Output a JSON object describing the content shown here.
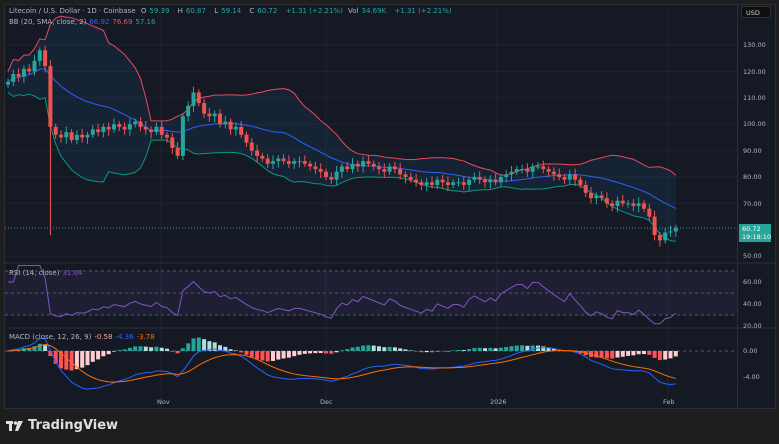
{
  "header": {
    "symbol": "Litecoin / U.S. Dollar · 1D · Coinbase",
    "open_label": "O",
    "open": "59.39",
    "high_label": "H",
    "high": "60.87",
    "low_label": "L",
    "low": "59.14",
    "close_label": "C",
    "close": "60.72",
    "change": "+1.31 (+2.21%)",
    "vol_label": "Vol",
    "vol": "34.69K",
    "change2": "+1.31 (+2.21%)"
  },
  "bb": {
    "label": "BB (20, SMA, close, 2)",
    "basis": "66.92",
    "upper": "76.69",
    "lower": "57.16"
  },
  "rsi": {
    "label": "RSI (14, close)",
    "value": "31.64"
  },
  "macd": {
    "label": "MACD (close, 12, 26, 9)",
    "hist": "-0.58",
    "macd": "-4.36",
    "signal": "-3.78"
  },
  "currency": "USD",
  "last_price": {
    "price": "60.72",
    "countdown": "19:18:10"
  },
  "price_axis": [
    "130.00",
    "120.00",
    "110.00",
    "100.00",
    "90.00",
    "80.00",
    "70.00",
    "50.00"
  ],
  "rsi_axis": [
    "60.00",
    "40.00",
    "20.00"
  ],
  "macd_axis": [
    "0.00",
    "-4.00"
  ],
  "time_axis": [
    "Nov",
    "Dec",
    "2026",
    "Feb"
  ],
  "brand": "TradingView",
  "colors": {
    "up": "#26a69a",
    "down": "#ef5350",
    "bb_upper": "#e84a5f",
    "bb_basis": "#2962ff",
    "bb_lower": "#089981",
    "rsi": "#7e57c2",
    "macd": "#2962ff",
    "signal": "#ff6d00"
  },
  "chart_data": {
    "type": "candlestick",
    "x_start": "Oct 2",
    "x_end": "Feb 5",
    "closes": [
      116,
      119,
      118,
      121,
      120,
      124,
      128,
      122,
      99,
      96,
      95,
      97,
      94,
      96,
      95,
      96,
      98,
      97,
      99,
      98,
      100,
      99,
      98,
      100,
      101,
      99,
      98,
      97,
      99,
      96,
      95,
      91,
      88,
      103,
      107,
      112,
      108,
      104,
      103,
      104,
      100,
      101,
      98,
      99,
      96,
      93,
      90,
      88,
      87,
      85,
      86,
      87,
      86,
      85,
      86,
      86,
      85,
      84,
      83,
      82,
      80,
      79,
      82,
      84,
      83,
      85,
      84,
      86,
      85,
      84,
      83,
      82,
      84,
      83,
      81,
      80,
      79,
      78,
      77,
      78,
      77,
      79,
      78,
      77,
      78,
      78,
      77,
      79,
      80,
      79,
      78,
      79,
      78,
      80,
      81,
      82,
      83,
      83,
      82,
      84,
      84,
      83,
      82,
      81,
      80,
      79,
      81,
      79,
      77,
      74,
      72,
      73,
      72,
      70,
      69,
      71,
      70,
      70,
      69,
      70,
      68,
      65,
      58,
      56,
      59,
      59.39,
      60.72
    ],
    "oct10_low": 58
  }
}
